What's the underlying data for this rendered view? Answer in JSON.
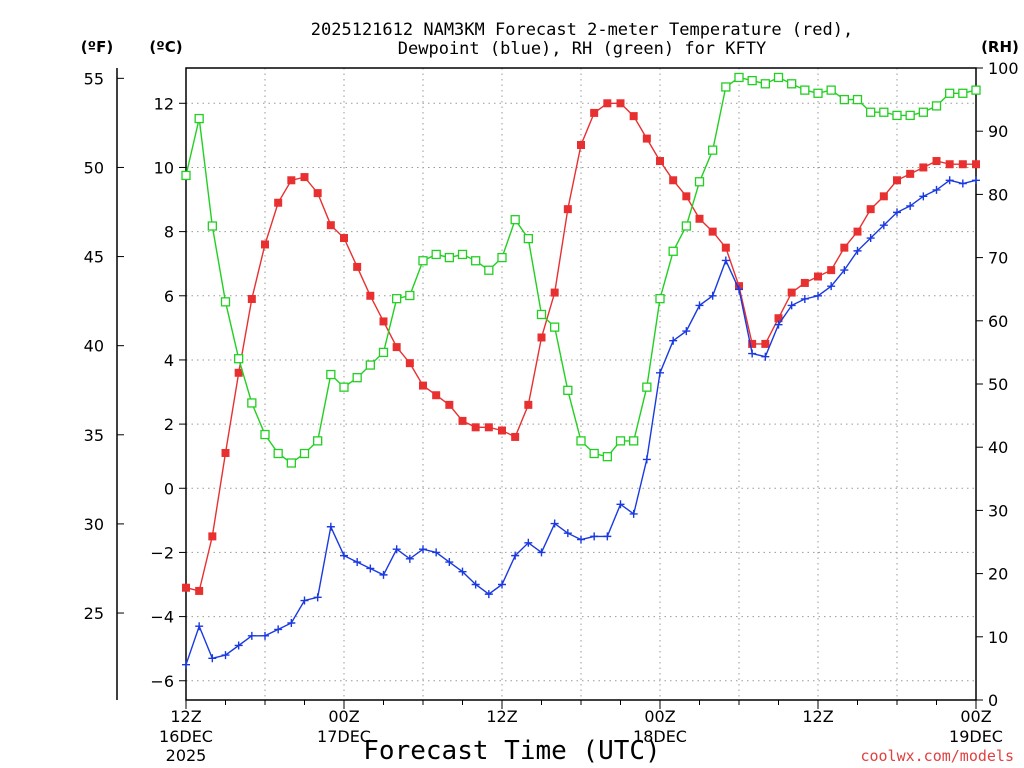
{
  "chart_data": {
    "type": "line",
    "title_lines": [
      "2025121612 NAM3KM Forecast 2-meter Temperature (red),",
      "Dewpoint (blue), RH (green) for KFTY"
    ],
    "xlabel": "Forecast Time (UTC)",
    "unit_labels": {
      "fahrenheit": "(ºF)",
      "celsius": "(ºC)",
      "rh": "(RH)"
    },
    "watermark": "coolwx.com/models",
    "x_ticks": [
      {
        "h": 0,
        "label": "12Z",
        "sub": "16DEC",
        "sub2": "2025"
      },
      {
        "h": 12,
        "label": "00Z",
        "sub": "17DEC",
        "sub2": ""
      },
      {
        "h": 24,
        "label": "12Z",
        "sub": "",
        "sub2": ""
      },
      {
        "h": 36,
        "label": "00Z",
        "sub": "18DEC",
        "sub2": ""
      },
      {
        "h": 48,
        "label": "12Z",
        "sub": "",
        "sub2": ""
      },
      {
        "h": 60,
        "label": "00Z",
        "sub": "19DEC",
        "sub2": ""
      }
    ],
    "xlim": [
      0,
      60
    ],
    "celsius_axis": {
      "ylim": [
        -6.6,
        13.1
      ],
      "ticks": [
        -6,
        -4,
        -2,
        0,
        2,
        4,
        6,
        8,
        10,
        12
      ]
    },
    "fahrenheit_axis": {
      "ticks": [
        25,
        30,
        35,
        40,
        45,
        50,
        55
      ]
    },
    "rh_axis": {
      "ylim": [
        0,
        100
      ],
      "ticks": [
        0,
        10,
        20,
        30,
        40,
        50,
        60,
        70,
        80,
        90,
        100
      ]
    },
    "series": [
      {
        "name": "Temperature",
        "unit": "C",
        "color": "#e83030",
        "marker": "filled-square",
        "x": [
          0,
          1,
          2,
          3,
          4,
          5,
          6,
          7,
          8,
          9,
          10,
          11,
          12,
          13,
          14,
          15,
          16,
          17,
          18,
          19,
          20,
          21,
          22,
          23,
          24,
          25,
          26,
          27,
          28,
          29,
          30,
          31,
          32,
          33,
          34,
          35,
          36,
          37,
          38,
          39,
          40,
          41,
          42,
          43,
          44,
          45,
          46,
          47,
          48,
          49,
          50,
          51,
          52,
          53,
          54,
          55,
          56,
          57,
          58,
          59,
          60
        ],
        "values": [
          -3.1,
          -3.2,
          -1.5,
          1.1,
          3.6,
          5.9,
          7.6,
          8.9,
          9.6,
          9.7,
          9.2,
          8.2,
          7.8,
          6.9,
          6.0,
          5.2,
          4.4,
          3.9,
          3.2,
          2.9,
          2.6,
          2.1,
          1.9,
          1.9,
          1.8,
          1.6,
          2.6,
          4.7,
          6.1,
          8.7,
          10.7,
          11.7,
          12.0,
          12.0,
          11.6,
          10.9,
          10.2,
          9.6,
          9.1,
          8.4,
          8.0,
          7.5,
          6.3,
          4.5,
          4.5,
          5.3,
          6.1,
          6.4,
          6.6,
          6.8,
          7.5,
          8.0,
          8.7,
          9.1,
          9.6,
          9.8,
          10.0,
          10.2,
          10.1,
          10.1,
          10.1
        ]
      },
      {
        "name": "Dewpoint",
        "unit": "C",
        "color": "#1a3ae0",
        "marker": "plus",
        "x": [
          0,
          1,
          2,
          3,
          4,
          5,
          6,
          7,
          8,
          9,
          10,
          11,
          12,
          13,
          14,
          15,
          16,
          17,
          18,
          19,
          20,
          21,
          22,
          23,
          24,
          25,
          26,
          27,
          28,
          29,
          30,
          31,
          32,
          33,
          34,
          35,
          36,
          37,
          38,
          39,
          40,
          41,
          42,
          43,
          44,
          45,
          46,
          47,
          48,
          49,
          50,
          51,
          52,
          53,
          54,
          55,
          56,
          57,
          58,
          59,
          60
        ],
        "values": [
          -5.5,
          -4.3,
          -5.3,
          -5.2,
          -4.9,
          -4.6,
          -4.6,
          -4.4,
          -4.2,
          -3.5,
          -3.4,
          -1.2,
          -2.1,
          -2.3,
          -2.5,
          -2.7,
          -1.9,
          -2.2,
          -1.9,
          -2.0,
          -2.3,
          -2.6,
          -3.0,
          -3.3,
          -3.0,
          -2.1,
          -1.7,
          -2.0,
          -1.1,
          -1.4,
          -1.6,
          -1.5,
          -1.5,
          -0.5,
          -0.8,
          0.9,
          3.6,
          4.6,
          4.9,
          5.7,
          6.0,
          7.1,
          6.2,
          4.2,
          4.1,
          5.1,
          5.7,
          5.9,
          6.0,
          6.3,
          6.8,
          7.4,
          7.8,
          8.2,
          8.6,
          8.8,
          9.1,
          9.3,
          9.6,
          9.5,
          9.6
        ]
      },
      {
        "name": "RH",
        "unit": "%",
        "color": "#22d022",
        "marker": "open-square",
        "x": [
          0,
          1,
          2,
          3,
          4,
          5,
          6,
          7,
          8,
          9,
          10,
          11,
          12,
          13,
          14,
          15,
          16,
          17,
          18,
          19,
          20,
          21,
          22,
          23,
          24,
          25,
          26,
          27,
          28,
          29,
          30,
          31,
          32,
          33,
          34,
          35,
          36,
          37,
          38,
          39,
          40,
          41,
          42,
          43,
          44,
          45,
          46,
          47,
          48,
          49,
          50,
          51,
          52,
          53,
          54,
          55,
          56,
          57,
          58,
          59,
          60
        ],
        "values": [
          83,
          92,
          75,
          63,
          54,
          47,
          42,
          39,
          37.5,
          39,
          41,
          51.5,
          49.5,
          51,
          53,
          55,
          63.5,
          64,
          69.5,
          70.5,
          70,
          70.5,
          69.5,
          68,
          70,
          76,
          73,
          61,
          59,
          49,
          41,
          39,
          38.5,
          41,
          41,
          49.5,
          63.5,
          71,
          75,
          82,
          87,
          97,
          98.5,
          98,
          97.5,
          98.5,
          97.5,
          96.5,
          96,
          96.5,
          95,
          95,
          93,
          93,
          92.5,
          92.5,
          93,
          94,
          96,
          96,
          96.5
        ]
      }
    ]
  }
}
